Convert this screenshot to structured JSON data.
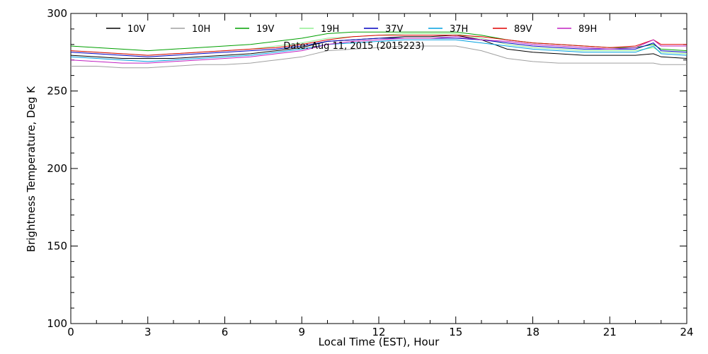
{
  "chart_data": {
    "type": "line",
    "title": "",
    "annotation": "Date: Aug 11, 2015 (2015223)",
    "xlabel": "Local Time (EST), Hour",
    "ylabel": "Brightness Temperature, Deg K",
    "xlim": [
      0,
      24
    ],
    "ylim": [
      100,
      300
    ],
    "xticks": [
      0,
      3,
      6,
      9,
      12,
      15,
      18,
      21,
      24
    ],
    "yticks": [
      100,
      150,
      200,
      250,
      300
    ],
    "grid": false,
    "legend_position": "top",
    "x": [
      0,
      1,
      2,
      3,
      4,
      5,
      6,
      7,
      8,
      9,
      10,
      11,
      12,
      13,
      14,
      15,
      16,
      17,
      18,
      19,
      20,
      21,
      22,
      22.7,
      23,
      24
    ],
    "series": [
      {
        "name": "10V",
        "color": "#000000",
        "values": [
          273,
          272,
          271,
          271,
          271,
          272,
          273,
          274,
          276,
          278,
          282,
          283,
          284,
          285,
          285,
          286,
          283,
          277,
          275,
          274,
          273,
          273,
          273,
          274,
          272,
          271
        ]
      },
      {
        "name": "10H",
        "color": "#a0a0a0",
        "values": [
          266,
          266,
          265,
          265,
          266,
          267,
          267,
          268,
          270,
          272,
          276,
          277,
          278,
          279,
          279,
          279,
          276,
          271,
          269,
          268,
          268,
          268,
          268,
          268,
          267,
          267
        ]
      },
      {
        "name": "19V",
        "color": "#00a000",
        "values": [
          279,
          278,
          277,
          276,
          277,
          278,
          279,
          280,
          282,
          284,
          287,
          288,
          288,
          288,
          288,
          288,
          286,
          283,
          281,
          280,
          279,
          278,
          278,
          280,
          277,
          276
        ]
      },
      {
        "name": "19H",
        "color": "#90ee90",
        "values": [
          276,
          275,
          274,
          273,
          274,
          275,
          276,
          277,
          279,
          281,
          284,
          285,
          286,
          287,
          287,
          287,
          284,
          280,
          278,
          277,
          276,
          276,
          276,
          278,
          275,
          274
        ]
      },
      {
        "name": "37V",
        "color": "#0000c0",
        "values": [
          275,
          274,
          273,
          272,
          273,
          274,
          275,
          276,
          277,
          279,
          282,
          283,
          284,
          284,
          284,
          284,
          283,
          281,
          279,
          278,
          277,
          277,
          277,
          281,
          276,
          275
        ]
      },
      {
        "name": "37H",
        "color": "#00a0e0",
        "values": [
          272,
          271,
          270,
          269,
          270,
          271,
          272,
          273,
          275,
          277,
          280,
          281,
          282,
          283,
          283,
          283,
          281,
          279,
          277,
          276,
          275,
          275,
          275,
          279,
          274,
          273
        ]
      },
      {
        "name": "89V",
        "color": "#e00000",
        "values": [
          276,
          275,
          274,
          273,
          274,
          275,
          276,
          277,
          278,
          280,
          283,
          285,
          286,
          286,
          286,
          286,
          285,
          283,
          281,
          280,
          279,
          278,
          279,
          283,
          280,
          280
        ]
      },
      {
        "name": "89H",
        "color": "#c020c0",
        "values": [
          270,
          269,
          268,
          268,
          269,
          270,
          271,
          272,
          274,
          276,
          280,
          282,
          283,
          284,
          284,
          285,
          283,
          282,
          280,
          279,
          278,
          277,
          278,
          283,
          279,
          279
        ]
      }
    ]
  }
}
